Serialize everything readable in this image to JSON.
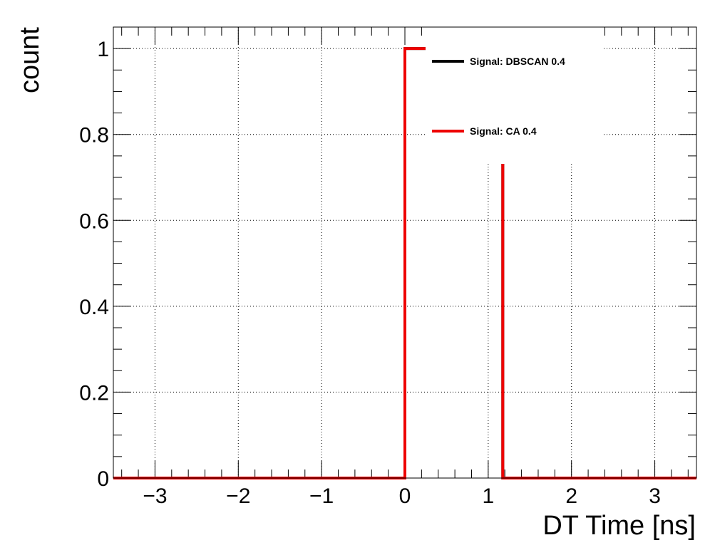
{
  "chart_data": {
    "type": "line",
    "style": "step-histogram",
    "title": "",
    "xlabel": "DT Time [ns]",
    "ylabel": "count",
    "xlim": [
      -3.5,
      3.5
    ],
    "ylim": [
      0,
      1.05
    ],
    "grid": true,
    "legend_position": "top-right",
    "x_ticks": [
      -3,
      -2,
      -1,
      0,
      1,
      2,
      3
    ],
    "x_tick_labels": [
      "−3",
      "−2",
      "−1",
      "0",
      "1",
      "2",
      "3"
    ],
    "y_ticks": [
      0,
      0.2,
      0.4,
      0.6,
      0.8,
      1
    ],
    "y_tick_labels": [
      "0",
      "0.2",
      "0.4",
      "0.6",
      "0.8",
      "1"
    ],
    "series": [
      {
        "name": "Signal: DBSCAN 0.4",
        "color": "#000000",
        "bin_edges": [
          -3.5,
          0.0,
          1.175,
          3.5
        ],
        "values": [
          0,
          1.0,
          0
        ]
      },
      {
        "name": "Signal: CA 0.4",
        "color": "#ee0000",
        "bin_edges": [
          -3.5,
          0.0,
          1.175,
          3.5
        ],
        "values": [
          0,
          1.0,
          0
        ]
      }
    ]
  }
}
